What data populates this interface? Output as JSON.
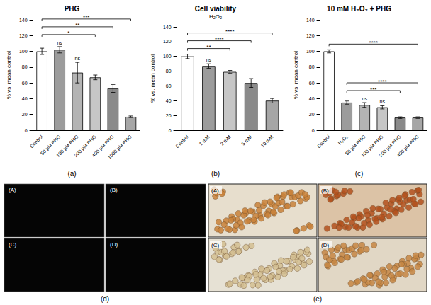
{
  "chart_data": [
    {
      "type": "bar",
      "panel": "(a)",
      "title": "PHG",
      "y_label": "% vs. mean control",
      "categories": [
        "Control",
        "50 µM PHG",
        "100 µM PHG",
        "200 µM PHG",
        "400 µM PHG",
        "1000 µM PHG"
      ],
      "values": [
        100,
        102,
        73,
        67,
        53,
        17
      ],
      "errors": [
        4,
        4,
        13,
        3,
        5,
        1
      ],
      "colors": [
        "#ffffff",
        "#9c9c9c",
        "#b4b4b4",
        "#c6c6c6",
        "#8a8a8a",
        "#a6a6a6"
      ],
      "ylim": [
        0,
        140
      ],
      "yticks": [
        0,
        20,
        40,
        60,
        80,
        100,
        120,
        140
      ],
      "grid": false,
      "ns_labels": [
        {
          "category": "50 µM PHG",
          "label": "ns"
        },
        {
          "category": "100 µM PHG",
          "label": "ns"
        }
      ],
      "brackets": [
        {
          "from": "Control",
          "to": "200 µM PHG",
          "label": "*"
        },
        {
          "from": "Control",
          "to": "400 µM PHG",
          "label": "**"
        },
        {
          "from": "Control",
          "to": "1000 µM PHG",
          "label": "***"
        }
      ]
    },
    {
      "type": "bar",
      "panel": "(b)",
      "title": "Cell viability",
      "subtitle": "H₂O₂",
      "y_label": "% vs. mean control",
      "categories": [
        "Control",
        "1 mM",
        "2 mM",
        "5 mM",
        "10 mM"
      ],
      "values": [
        100,
        87,
        79,
        64,
        40
      ],
      "errors": [
        3,
        3,
        2,
        6,
        3
      ],
      "colors": [
        "#ffffff",
        "#9c9c9c",
        "#c6c6c6",
        "#8a8a8a",
        "#a6a6a6"
      ],
      "ylim": [
        0,
        140
      ],
      "yticks": [
        0,
        20,
        40,
        60,
        80,
        100,
        120,
        140
      ],
      "grid": false,
      "ns_labels": [
        {
          "category": "1 mM",
          "label": "ns"
        }
      ],
      "brackets": [
        {
          "from": "Control",
          "to": "2 mM",
          "label": "**"
        },
        {
          "from": "Control",
          "to": "5 mM",
          "label": "****"
        },
        {
          "from": "Control",
          "to": "10 mM",
          "label": "****"
        }
      ]
    },
    {
      "type": "bar",
      "panel": "(c)",
      "title": "10 mM H₂O₂ + PHG",
      "y_label": "% vs. mean control",
      "categories": [
        "Control",
        "H₂O₂",
        "50 µM PHG",
        "100 µM PHG",
        "200 µM PHG",
        "400 µM PHG"
      ],
      "values": [
        100,
        35,
        32,
        29,
        16,
        16
      ],
      "errors": [
        2,
        2,
        3,
        2,
        1,
        1
      ],
      "colors": [
        "#ffffff",
        "#9c9c9c",
        "#b4b4b4",
        "#c6c6c6",
        "#8a8a8a",
        "#a6a6a6"
      ],
      "ylim": [
        0,
        140
      ],
      "yticks": [
        0,
        20,
        40,
        60,
        80,
        100,
        120,
        140
      ],
      "grid": false,
      "ns_labels": [
        {
          "category": "50 µM PHG",
          "label": "ns"
        },
        {
          "category": "100 µM PHG",
          "label": "ns"
        }
      ],
      "brackets": [
        {
          "from": "H₂O₂",
          "to": "200 µM PHG",
          "label": "***"
        },
        {
          "from": "H₂O₂",
          "to": "400 µM PHG",
          "label": "****"
        },
        {
          "from": "Control",
          "to": "400 µM PHG",
          "label": "****"
        }
      ]
    }
  ],
  "image_panels": [
    {
      "label": "(d)",
      "tiles": [
        "(A)",
        "(B)",
        "(C)",
        "(D)"
      ]
    },
    {
      "label": "(e)",
      "tiles": [
        "(A)",
        "(B)",
        "(C)",
        "(D)"
      ]
    }
  ]
}
